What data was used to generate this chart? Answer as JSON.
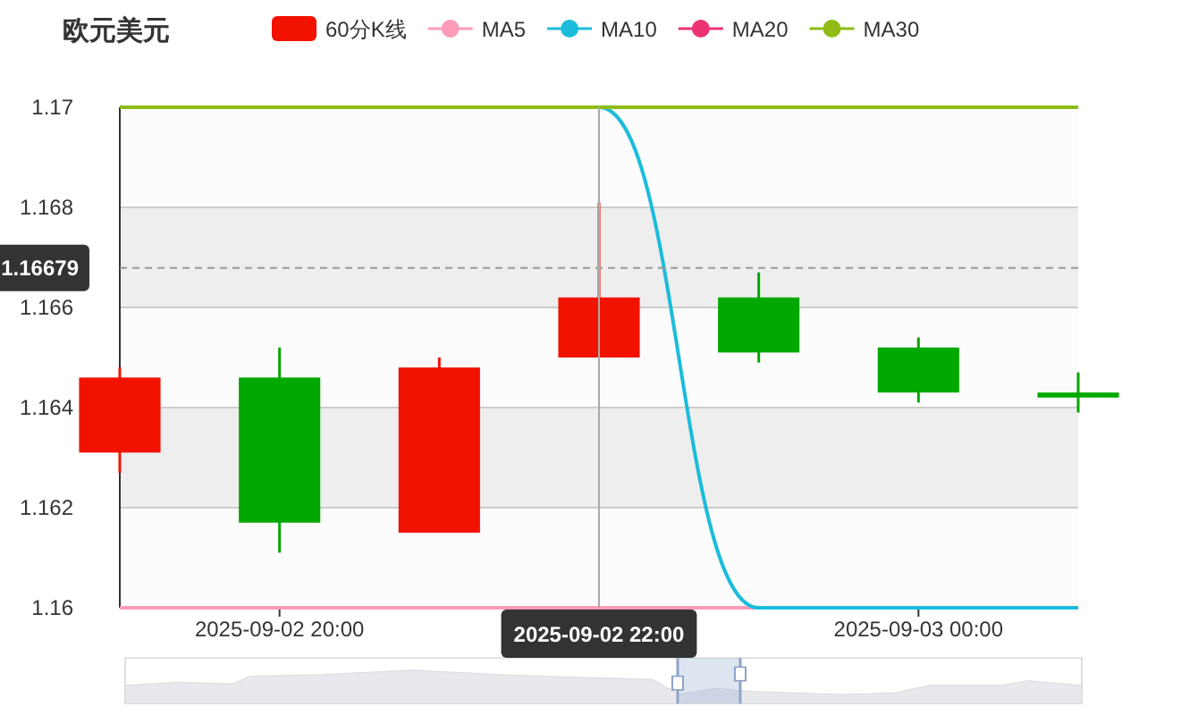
{
  "chart_data": {
    "type": "candlestick",
    "title": "欧元美元",
    "categories": [
      null,
      "2025-09-02 20:00",
      null,
      "2025-09-02 22:00",
      null,
      "2025-09-03 00:00",
      null
    ],
    "series": [
      {
        "name": "60分K线",
        "color": "#f21200",
        "colors": [
          "#f21200",
          "#00a800",
          "#f21200",
          "#f21200",
          "#00a800",
          "#00a800",
          "#00a800"
        ],
        "ohlc": [
          [
            1.1631,
            1.1648,
            1.1627,
            1.1646
          ],
          [
            1.1646,
            1.1652,
            1.1611,
            1.1617
          ],
          [
            1.1615,
            1.165,
            1.1615,
            1.1648
          ],
          [
            1.165,
            1.1681,
            1.165,
            1.1662
          ],
          [
            1.1662,
            1.1667,
            1.1649,
            1.1651
          ],
          [
            1.1652,
            1.1654,
            1.1641,
            1.1643
          ],
          [
            1.1643,
            1.1647,
            1.1639,
            1.1642
          ]
        ]
      },
      {
        "type": "line",
        "name": "MA5",
        "color": "#fc9cb8",
        "values": [
          1.16,
          1.16,
          1.16,
          1.16,
          1.16,
          null,
          null
        ]
      },
      {
        "type": "line",
        "name": "MA10",
        "color": "#1bbcdb",
        "values": [
          null,
          null,
          null,
          1.17,
          1.16,
          1.16,
          1.16
        ]
      },
      {
        "type": "line",
        "name": "MA20",
        "color": "#ec3272",
        "values": [
          null,
          null,
          null,
          null,
          null,
          null,
          null
        ]
      },
      {
        "type": "line",
        "name": "MA30",
        "color": "#8fbc15",
        "values": [
          1.17,
          1.17,
          1.17,
          1.17,
          1.17,
          1.17,
          1.17
        ]
      }
    ],
    "ylim": [
      1.16,
      1.17
    ],
    "yticks": [
      1.16,
      1.162,
      1.164,
      1.166,
      1.168,
      1.17
    ],
    "grid": "y",
    "legend": "top",
    "ref_lines": [
      {
        "axis": "y",
        "value": 1.16679,
        "label": "1.16679",
        "color": "#999999",
        "line_style": "dashed"
      },
      {
        "axis": "x",
        "value": "2025-09-02 22:00",
        "color": "#aaaaaa",
        "line_style": "solid"
      }
    ]
  }
}
